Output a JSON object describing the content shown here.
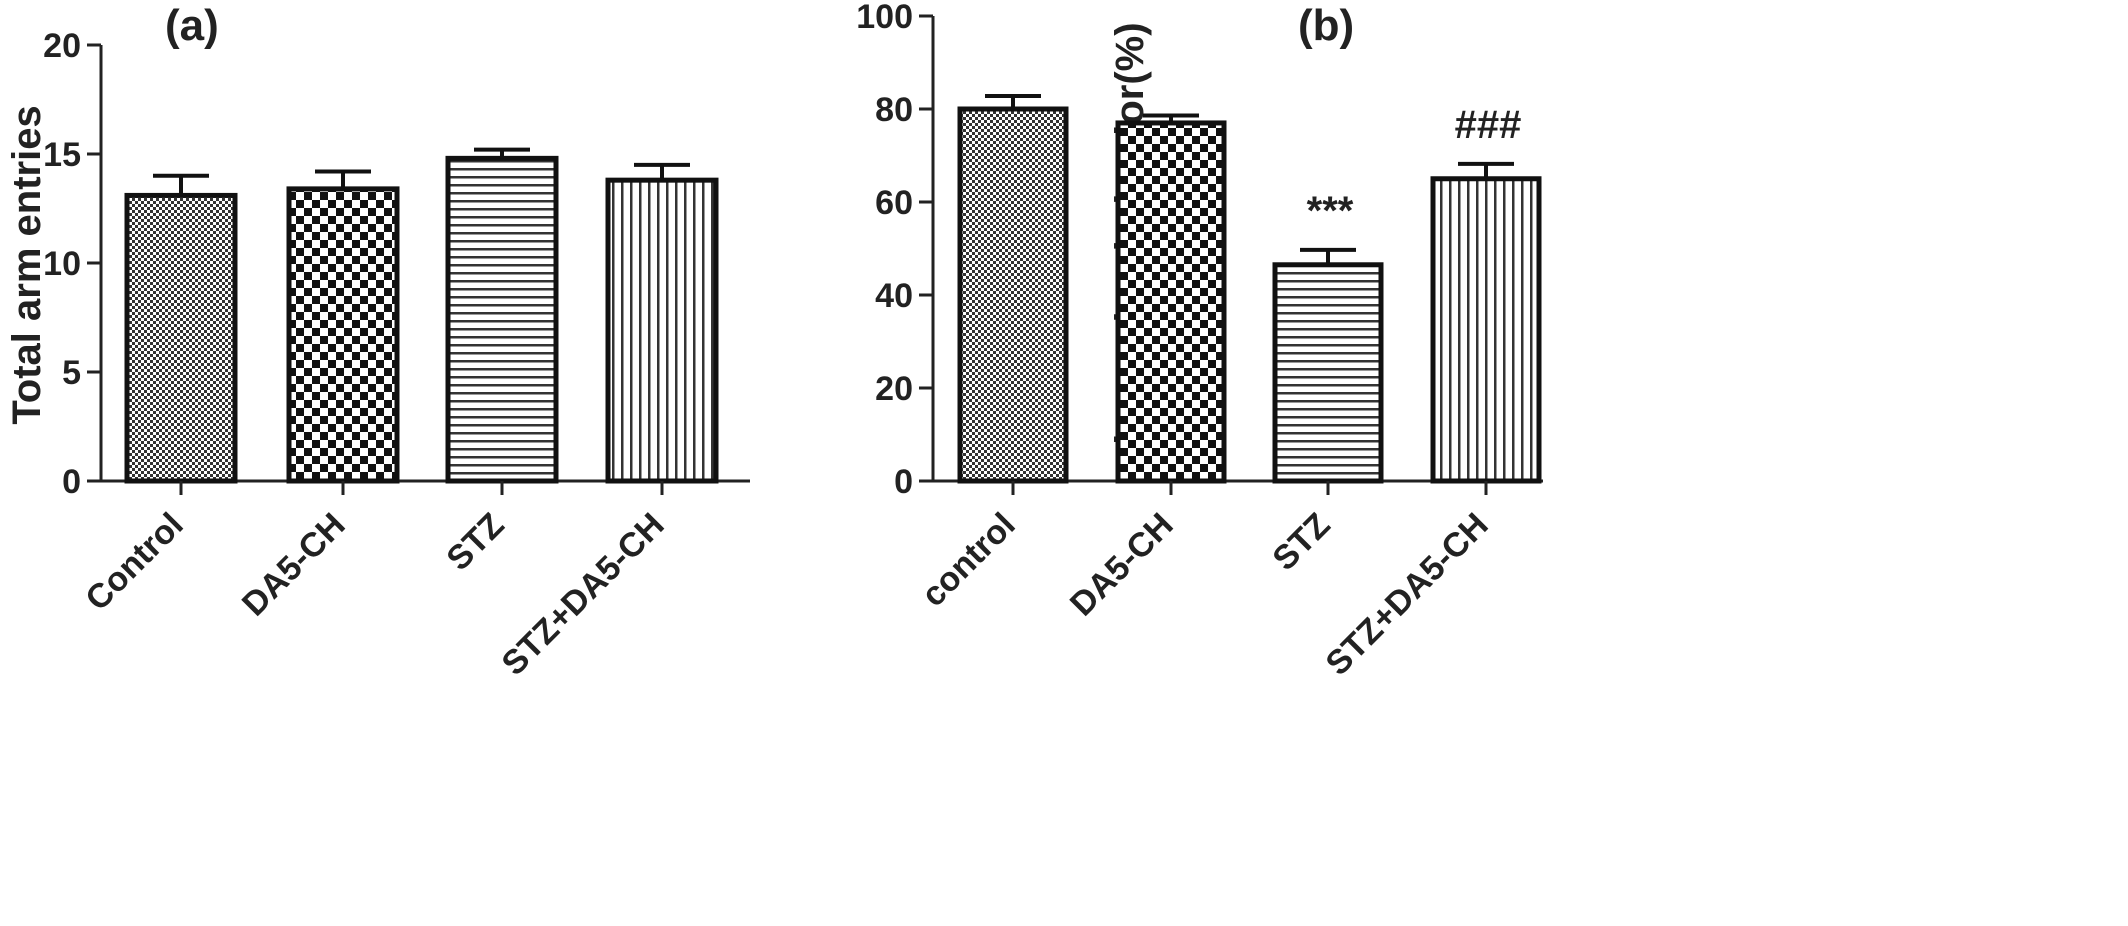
{
  "chart_data": [
    {
      "type": "bar",
      "panel_label": "(a)",
      "title": "",
      "xlabel": "",
      "ylabel": "Total arm entries",
      "ylim": [
        0,
        20
      ],
      "yticks": [
        0,
        5,
        10,
        15,
        20
      ],
      "grid": false,
      "categories": [
        "Control",
        "DA5-CH",
        "STZ",
        "STZ+DA5-CH"
      ],
      "values": [
        13.1,
        13.4,
        14.8,
        13.8
      ],
      "errors": [
        0.9,
        0.8,
        0.4,
        0.7
      ],
      "annotations": [
        "",
        "",
        "",
        ""
      ],
      "patterns": [
        "fine-check",
        "checker",
        "horizontal-stripes",
        "vertical-stripes"
      ]
    },
    {
      "type": "bar",
      "panel_label": "(b)",
      "title": "",
      "xlabel": "",
      "ylabel": "Alternation behavior(%)",
      "ylim": [
        0,
        100
      ],
      "yticks": [
        0,
        20,
        40,
        60,
        80,
        100
      ],
      "grid": false,
      "categories": [
        "control",
        "DA5-CH",
        "STZ",
        "STZ+DA5-CH"
      ],
      "values": [
        80,
        77,
        46.5,
        65
      ],
      "errors": [
        2.8,
        1.6,
        3.2,
        3.2
      ],
      "annotations": [
        "",
        "",
        "***",
        "###"
      ],
      "patterns": [
        "fine-check",
        "checker",
        "horizontal-stripes",
        "vertical-stripes"
      ]
    }
  ]
}
